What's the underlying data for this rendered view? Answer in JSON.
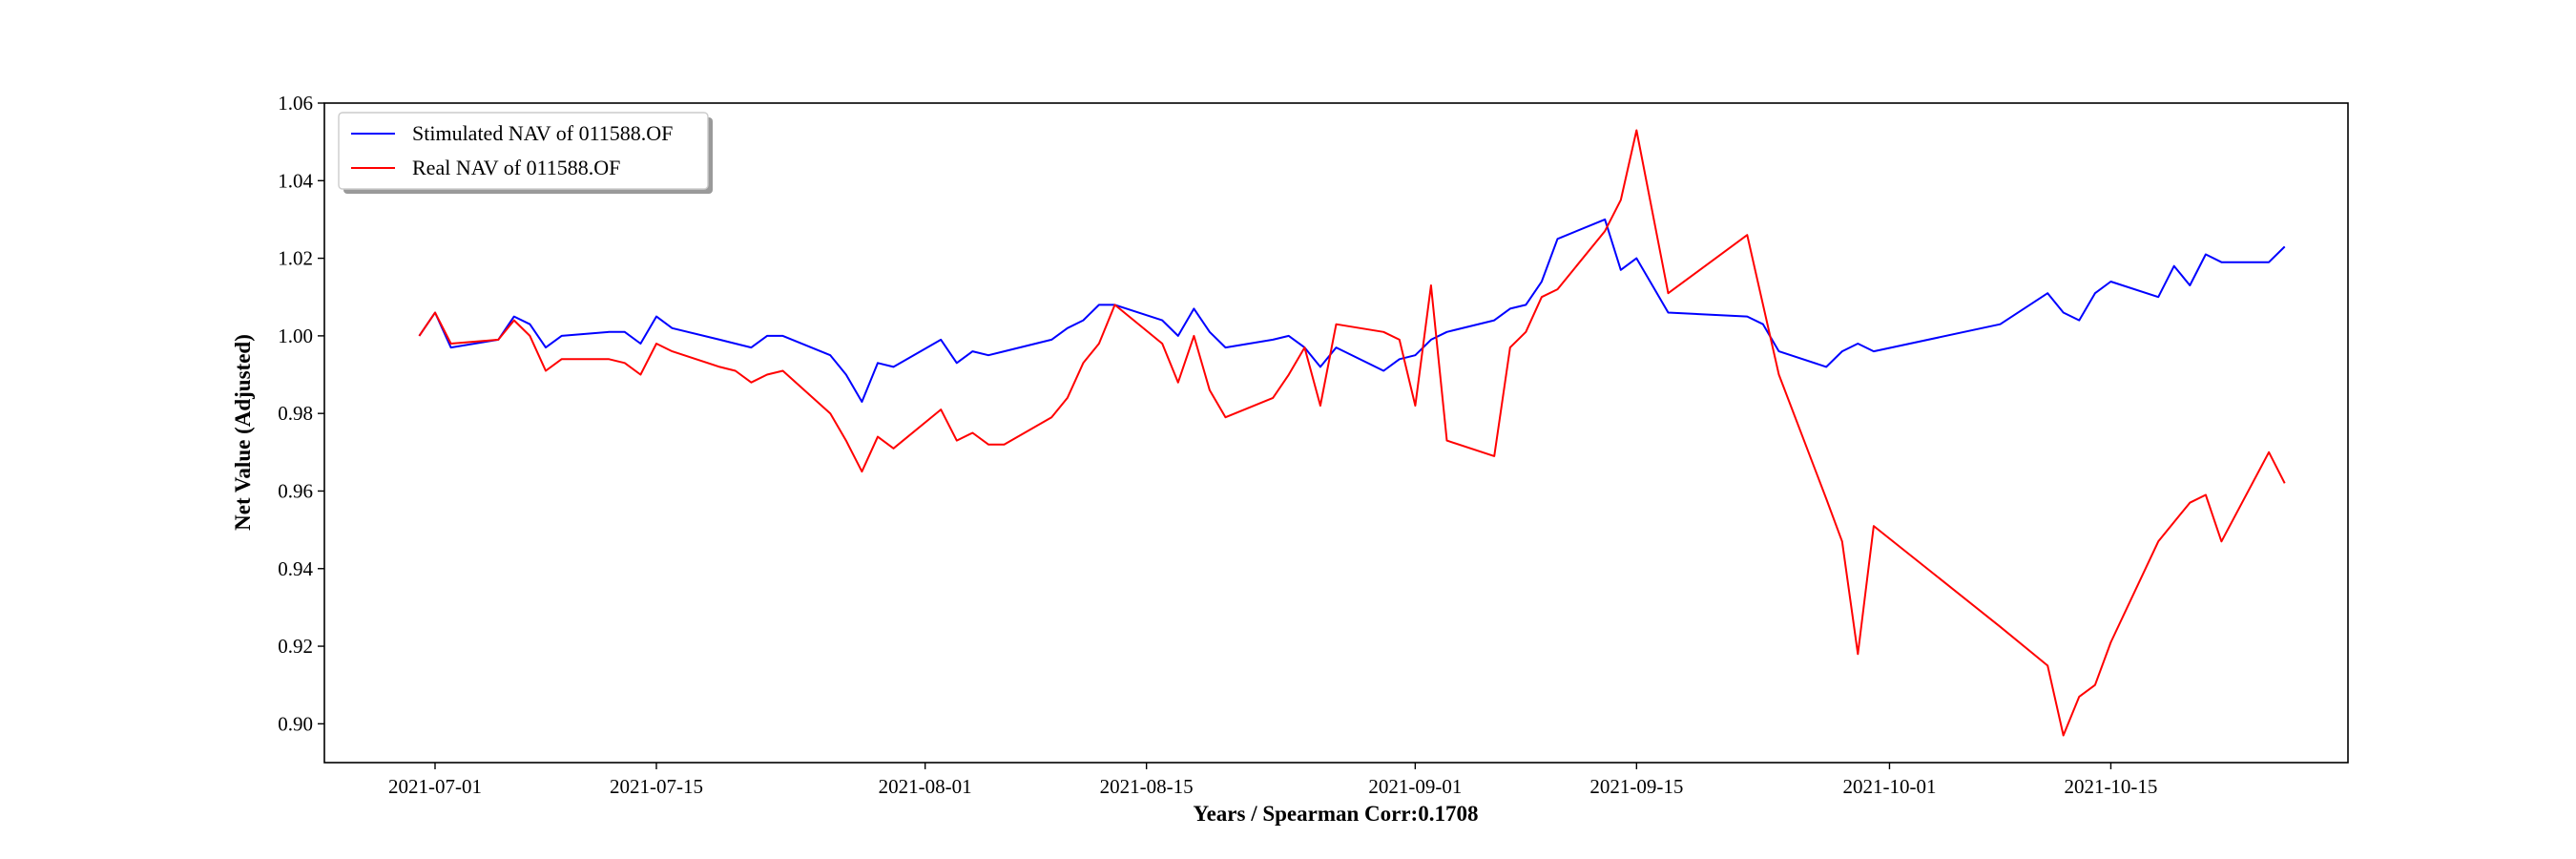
{
  "chart_data": {
    "type": "line",
    "title": "",
    "xlabel": "Years / Spearman Corr:0.1708",
    "ylabel": "Net Value (Adjusted)",
    "xlim": [
      "2021-06-24",
      "2021-10-30"
    ],
    "ylim": [
      0.89,
      1.06
    ],
    "x_ticks": [
      "2021-07-01",
      "2021-07-15",
      "2021-08-01",
      "2021-08-15",
      "2021-09-01",
      "2021-09-15",
      "2021-10-01",
      "2021-10-15"
    ],
    "y_ticks": [
      0.9,
      0.92,
      0.94,
      0.96,
      0.98,
      1.0,
      1.02,
      1.04,
      1.06
    ],
    "grid": false,
    "legend_position": "top-left",
    "series": [
      {
        "name": "Stimulated NAV of 011588.OF",
        "color": "#0000ff",
        "points": [
          [
            "2021-06-30",
            1.0
          ],
          [
            "2021-07-01",
            1.006
          ],
          [
            "2021-07-02",
            0.997
          ],
          [
            "2021-07-05",
            0.999
          ],
          [
            "2021-07-06",
            1.005
          ],
          [
            "2021-07-07",
            1.003
          ],
          [
            "2021-07-08",
            0.997
          ],
          [
            "2021-07-09",
            1.0
          ],
          [
            "2021-07-12",
            1.001
          ],
          [
            "2021-07-13",
            1.001
          ],
          [
            "2021-07-14",
            0.998
          ],
          [
            "2021-07-15",
            1.005
          ],
          [
            "2021-07-16",
            1.002
          ],
          [
            "2021-07-19",
            0.999
          ],
          [
            "2021-07-20",
            0.998
          ],
          [
            "2021-07-21",
            0.997
          ],
          [
            "2021-07-22",
            1.0
          ],
          [
            "2021-07-23",
            1.0
          ],
          [
            "2021-07-26",
            0.995
          ],
          [
            "2021-07-27",
            0.99
          ],
          [
            "2021-07-28",
            0.983
          ],
          [
            "2021-07-29",
            0.993
          ],
          [
            "2021-07-30",
            0.992
          ],
          [
            "2021-08-02",
            0.999
          ],
          [
            "2021-08-03",
            0.993
          ],
          [
            "2021-08-04",
            0.996
          ],
          [
            "2021-08-05",
            0.995
          ],
          [
            "2021-08-06",
            0.996
          ],
          [
            "2021-08-09",
            0.999
          ],
          [
            "2021-08-10",
            1.002
          ],
          [
            "2021-08-11",
            1.004
          ],
          [
            "2021-08-12",
            1.008
          ],
          [
            "2021-08-13",
            1.008
          ],
          [
            "2021-08-16",
            1.004
          ],
          [
            "2021-08-17",
            1.0
          ],
          [
            "2021-08-18",
            1.007
          ],
          [
            "2021-08-19",
            1.001
          ],
          [
            "2021-08-20",
            0.997
          ],
          [
            "2021-08-23",
            0.999
          ],
          [
            "2021-08-24",
            1.0
          ],
          [
            "2021-08-25",
            0.997
          ],
          [
            "2021-08-26",
            0.992
          ],
          [
            "2021-08-27",
            0.997
          ],
          [
            "2021-08-30",
            0.991
          ],
          [
            "2021-08-31",
            0.994
          ],
          [
            "2021-09-01",
            0.995
          ],
          [
            "2021-09-02",
            0.999
          ],
          [
            "2021-09-03",
            1.001
          ],
          [
            "2021-09-06",
            1.004
          ],
          [
            "2021-09-07",
            1.007
          ],
          [
            "2021-09-08",
            1.008
          ],
          [
            "2021-09-09",
            1.014
          ],
          [
            "2021-09-10",
            1.025
          ],
          [
            "2021-09-13",
            1.03
          ],
          [
            "2021-09-14",
            1.017
          ],
          [
            "2021-09-15",
            1.02
          ],
          [
            "2021-09-16",
            1.013
          ],
          [
            "2021-09-17",
            1.006
          ],
          [
            "2021-09-22",
            1.005
          ],
          [
            "2021-09-23",
            1.003
          ],
          [
            "2021-09-24",
            0.996
          ],
          [
            "2021-09-27",
            0.992
          ],
          [
            "2021-09-28",
            0.996
          ],
          [
            "2021-09-29",
            0.998
          ],
          [
            "2021-09-30",
            0.996
          ],
          [
            "2021-10-08",
            1.003
          ],
          [
            "2021-10-11",
            1.011
          ],
          [
            "2021-10-12",
            1.006
          ],
          [
            "2021-10-13",
            1.004
          ],
          [
            "2021-10-14",
            1.011
          ],
          [
            "2021-10-15",
            1.014
          ],
          [
            "2021-10-18",
            1.01
          ],
          [
            "2021-10-19",
            1.018
          ],
          [
            "2021-10-20",
            1.013
          ],
          [
            "2021-10-21",
            1.021
          ],
          [
            "2021-10-22",
            1.019
          ],
          [
            "2021-10-25",
            1.019
          ],
          [
            "2021-10-26",
            1.023
          ]
        ]
      },
      {
        "name": "Real NAV of 011588.OF",
        "color": "#ff0000",
        "points": [
          [
            "2021-06-30",
            1.0
          ],
          [
            "2021-07-01",
            1.006
          ],
          [
            "2021-07-02",
            0.998
          ],
          [
            "2021-07-05",
            0.999
          ],
          [
            "2021-07-06",
            1.004
          ],
          [
            "2021-07-07",
            1.0
          ],
          [
            "2021-07-08",
            0.991
          ],
          [
            "2021-07-09",
            0.994
          ],
          [
            "2021-07-12",
            0.994
          ],
          [
            "2021-07-13",
            0.993
          ],
          [
            "2021-07-14",
            0.99
          ],
          [
            "2021-07-15",
            0.998
          ],
          [
            "2021-07-16",
            0.996
          ],
          [
            "2021-07-19",
            0.992
          ],
          [
            "2021-07-20",
            0.991
          ],
          [
            "2021-07-21",
            0.988
          ],
          [
            "2021-07-22",
            0.99
          ],
          [
            "2021-07-23",
            0.991
          ],
          [
            "2021-07-26",
            0.98
          ],
          [
            "2021-07-27",
            0.973
          ],
          [
            "2021-07-28",
            0.965
          ],
          [
            "2021-07-29",
            0.974
          ],
          [
            "2021-07-30",
            0.971
          ],
          [
            "2021-08-02",
            0.981
          ],
          [
            "2021-08-03",
            0.973
          ],
          [
            "2021-08-04",
            0.975
          ],
          [
            "2021-08-05",
            0.972
          ],
          [
            "2021-08-06",
            0.972
          ],
          [
            "2021-08-09",
            0.979
          ],
          [
            "2021-08-10",
            0.984
          ],
          [
            "2021-08-11",
            0.993
          ],
          [
            "2021-08-12",
            0.998
          ],
          [
            "2021-08-13",
            1.008
          ],
          [
            "2021-08-16",
            0.998
          ],
          [
            "2021-08-17",
            0.988
          ],
          [
            "2021-08-18",
            1.0
          ],
          [
            "2021-08-19",
            0.986
          ],
          [
            "2021-08-20",
            0.979
          ],
          [
            "2021-08-23",
            0.984
          ],
          [
            "2021-08-24",
            0.99
          ],
          [
            "2021-08-25",
            0.997
          ],
          [
            "2021-08-26",
            0.982
          ],
          [
            "2021-08-27",
            1.003
          ],
          [
            "2021-08-30",
            1.001
          ],
          [
            "2021-08-31",
            0.999
          ],
          [
            "2021-09-01",
            0.982
          ],
          [
            "2021-09-02",
            1.013
          ],
          [
            "2021-09-03",
            0.973
          ],
          [
            "2021-09-06",
            0.969
          ],
          [
            "2021-09-07",
            0.997
          ],
          [
            "2021-09-08",
            1.001
          ],
          [
            "2021-09-09",
            1.01
          ],
          [
            "2021-09-10",
            1.012
          ],
          [
            "2021-09-13",
            1.027
          ],
          [
            "2021-09-14",
            1.035
          ],
          [
            "2021-09-15",
            1.053
          ],
          [
            "2021-09-17",
            1.011
          ],
          [
            "2021-09-22",
            1.026
          ],
          [
            "2021-09-24",
            0.99
          ],
          [
            "2021-09-27",
            0.958
          ],
          [
            "2021-09-28",
            0.947
          ],
          [
            "2021-09-29",
            0.918
          ],
          [
            "2021-09-30",
            0.951
          ],
          [
            "2021-10-08",
            0.925
          ],
          [
            "2021-10-11",
            0.915
          ],
          [
            "2021-10-12",
            0.897
          ],
          [
            "2021-10-13",
            0.907
          ],
          [
            "2021-10-14",
            0.91
          ],
          [
            "2021-10-15",
            0.921
          ],
          [
            "2021-10-18",
            0.947
          ],
          [
            "2021-10-19",
            0.952
          ],
          [
            "2021-10-20",
            0.957
          ],
          [
            "2021-10-21",
            0.959
          ],
          [
            "2021-10-22",
            0.947
          ],
          [
            "2021-10-25",
            0.97
          ],
          [
            "2021-10-26",
            0.962
          ]
        ]
      }
    ]
  }
}
